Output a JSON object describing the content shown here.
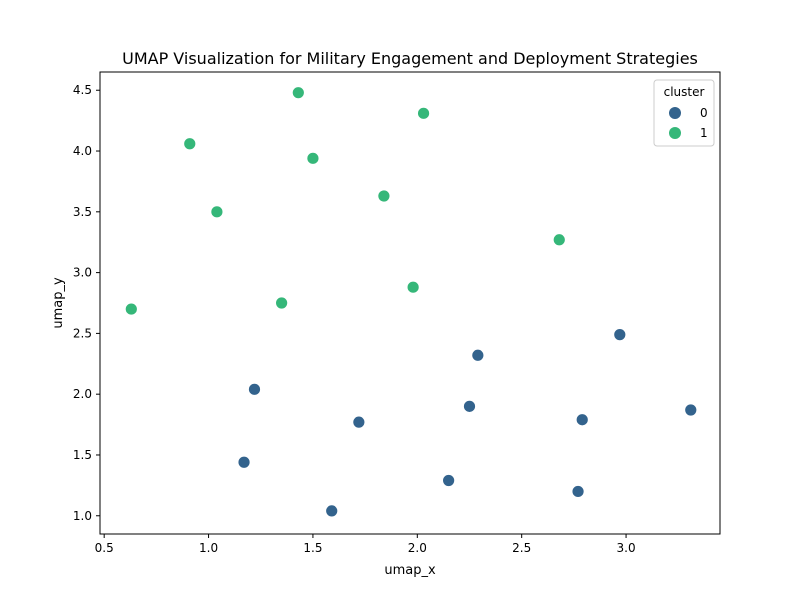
{
  "chart_data": {
    "type": "scatter",
    "title": "UMAP Visualization for Military Engagement and Deployment Strategies",
    "xlabel": "umap_x",
    "ylabel": "umap_y",
    "xlim": [
      0.48,
      3.45
    ],
    "ylim": [
      0.85,
      4.65
    ],
    "xticks": [
      0.5,
      1.0,
      1.5,
      2.0,
      2.5,
      3.0
    ],
    "xtick_labels": [
      "0.5",
      "1.0",
      "1.5",
      "2.0",
      "2.5",
      "3.0"
    ],
    "yticks": [
      1.0,
      1.5,
      2.0,
      2.5,
      3.0,
      3.5,
      4.0,
      4.5
    ],
    "ytick_labels": [
      "1.0",
      "1.5",
      "2.0",
      "2.5",
      "3.0",
      "3.5",
      "4.0",
      "4.5"
    ],
    "grid": false,
    "legend": {
      "title": "cluster",
      "placement": "top-right"
    },
    "series": [
      {
        "name": "0",
        "color": "#33638d",
        "points": [
          {
            "x": 1.22,
            "y": 2.04
          },
          {
            "x": 2.29,
            "y": 2.32
          },
          {
            "x": 2.97,
            "y": 2.49
          },
          {
            "x": 1.72,
            "y": 1.77
          },
          {
            "x": 2.25,
            "y": 1.9
          },
          {
            "x": 2.79,
            "y": 1.79
          },
          {
            "x": 3.31,
            "y": 1.87
          },
          {
            "x": 1.17,
            "y": 1.44
          },
          {
            "x": 2.15,
            "y": 1.29
          },
          {
            "x": 2.77,
            "y": 1.2
          },
          {
            "x": 1.59,
            "y": 1.04
          }
        ]
      },
      {
        "name": "1",
        "color": "#35b779",
        "points": [
          {
            "x": 1.43,
            "y": 4.48
          },
          {
            "x": 2.03,
            "y": 4.31
          },
          {
            "x": 0.91,
            "y": 4.06
          },
          {
            "x": 1.5,
            "y": 3.94
          },
          {
            "x": 1.84,
            "y": 3.63
          },
          {
            "x": 1.04,
            "y": 3.5
          },
          {
            "x": 2.68,
            "y": 3.27
          },
          {
            "x": 1.98,
            "y": 2.88
          },
          {
            "x": 1.35,
            "y": 2.75
          },
          {
            "x": 0.63,
            "y": 2.7
          }
        ]
      }
    ]
  }
}
